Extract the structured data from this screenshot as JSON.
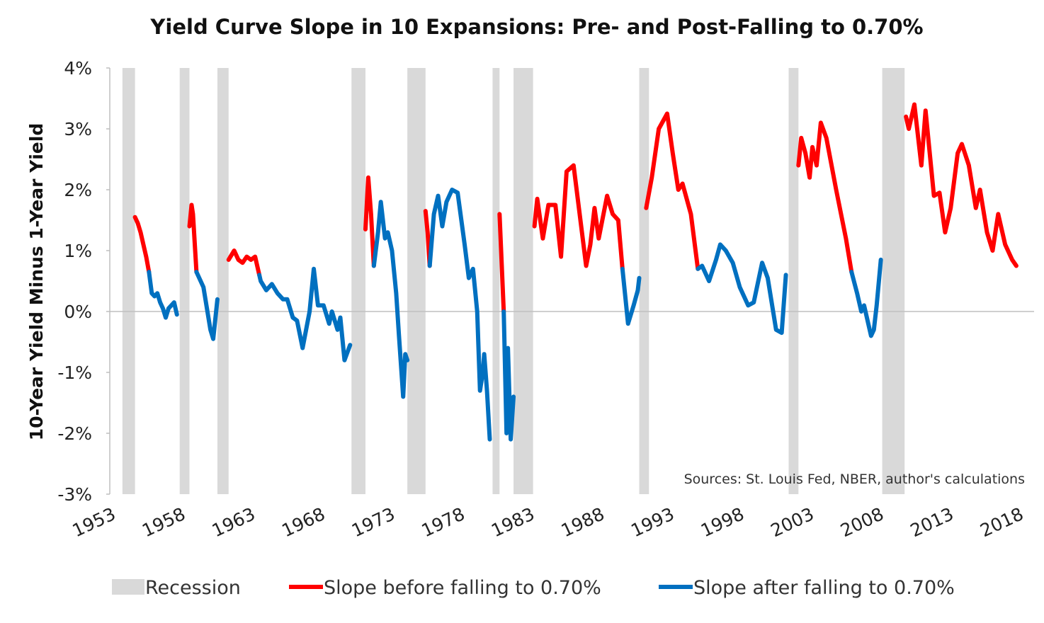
{
  "chart_data": {
    "type": "line",
    "title": "Yield Curve Slope in 10 Expansions: Pre- and Post-Falling to 0.70%",
    "ylabel": "10-Year Yield Minus 1-Year Yield",
    "xlabel": "",
    "source": "Sources: St. Louis Fed, NBER, author's calculations",
    "xlim": [
      1953,
      2018
    ],
    "ylim": [
      -3,
      4
    ],
    "x_ticks": [
      "1953",
      "1958",
      "1963",
      "1968",
      "1973",
      "1978",
      "1983",
      "1988",
      "1993",
      "1998",
      "2003",
      "2008",
      "2013",
      "2018"
    ],
    "y_ticks": [
      "-3%",
      "-2%",
      "-1%",
      "0%",
      "1%",
      "2%",
      "3%",
      "4%"
    ],
    "grid": false,
    "legend_placement": "bottom",
    "legend": [
      "Recession",
      "Slope before falling to 0.70%",
      "Slope after falling to 0.70%"
    ],
    "colors": {
      "recession": "#d9d9d9",
      "before": "#ff0000",
      "after": "#0070c0",
      "zero_line": "#bfbfbf"
    },
    "recessions": [
      [
        1953.5,
        1954.4
      ],
      [
        1957.6,
        1958.3
      ],
      [
        1960.3,
        1961.1
      ],
      [
        1969.9,
        1970.9
      ],
      [
        1973.9,
        1975.2
      ],
      [
        1980.0,
        1980.5
      ],
      [
        1981.5,
        1982.9
      ],
      [
        1990.5,
        1991.2
      ],
      [
        2001.2,
        2001.9
      ],
      [
        2007.9,
        2009.5
      ]
    ],
    "series": [
      {
        "name": "Slope before falling to 0.70%",
        "segments": [
          [
            [
              1954.4,
              1.55
            ],
            [
              1954.6,
              1.45
            ],
            [
              1954.8,
              1.3
            ],
            [
              1955.0,
              1.1
            ],
            [
              1955.2,
              0.9
            ],
            [
              1955.4,
              0.65
            ]
          ],
          [
            [
              1958.3,
              1.4
            ],
            [
              1958.45,
              1.75
            ],
            [
              1958.55,
              1.6
            ],
            [
              1958.8,
              0.65
            ]
          ],
          [
            [
              1961.1,
              0.85
            ],
            [
              1961.5,
              1.0
            ],
            [
              1961.8,
              0.85
            ],
            [
              1962.1,
              0.8
            ],
            [
              1962.4,
              0.9
            ],
            [
              1962.7,
              0.85
            ],
            [
              1963.0,
              0.9
            ],
            [
              1963.3,
              0.6
            ]
          ],
          [
            [
              1970.9,
              1.35
            ],
            [
              1971.1,
              2.2
            ],
            [
              1971.3,
              1.6
            ],
            [
              1971.5,
              0.75
            ]
          ],
          [
            [
              1975.2,
              1.65
            ],
            [
              1975.35,
              1.3
            ],
            [
              1975.5,
              0.75
            ]
          ],
          [
            [
              1980.5,
              1.6
            ],
            [
              1980.8,
              0.0
            ]
          ],
          [
            [
              1983.0,
              1.4
            ],
            [
              1983.2,
              1.85
            ],
            [
              1983.6,
              1.2
            ],
            [
              1984.0,
              1.75
            ],
            [
              1984.5,
              1.75
            ],
            [
              1984.9,
              0.9
            ],
            [
              1985.3,
              2.3
            ],
            [
              1985.8,
              2.4
            ],
            [
              1986.4,
              1.3
            ],
            [
              1986.7,
              0.75
            ],
            [
              1987.0,
              1.1
            ],
            [
              1987.3,
              1.7
            ],
            [
              1987.6,
              1.2
            ],
            [
              1988.2,
              1.9
            ],
            [
              1988.6,
              1.6
            ],
            [
              1989.0,
              1.5
            ],
            [
              1989.3,
              0.7
            ]
          ],
          [
            [
              1991.0,
              1.7
            ],
            [
              1991.4,
              2.2
            ],
            [
              1991.9,
              3.0
            ],
            [
              1992.5,
              3.25
            ],
            [
              1992.9,
              2.6
            ],
            [
              1993.3,
              2.0
            ],
            [
              1993.6,
              2.1
            ],
            [
              1994.2,
              1.6
            ],
            [
              1994.7,
              0.7
            ]
          ],
          [
            [
              2001.9,
              2.4
            ],
            [
              2002.1,
              2.85
            ],
            [
              2002.4,
              2.6
            ],
            [
              2002.7,
              2.2
            ],
            [
              2002.9,
              2.7
            ],
            [
              2003.2,
              2.4
            ],
            [
              2003.5,
              3.1
            ],
            [
              2003.9,
              2.85
            ],
            [
              2004.6,
              2.0
            ],
            [
              2005.3,
              1.2
            ],
            [
              2005.7,
              0.65
            ]
          ],
          [
            [
              2009.6,
              3.2
            ],
            [
              2009.8,
              3.0
            ],
            [
              2010.2,
              3.4
            ],
            [
              2010.7,
              2.4
            ],
            [
              2011.0,
              3.3
            ],
            [
              2011.6,
              1.9
            ],
            [
              2012.0,
              1.95
            ],
            [
              2012.4,
              1.3
            ],
            [
              2012.8,
              1.7
            ],
            [
              2013.3,
              2.6
            ],
            [
              2013.6,
              2.75
            ],
            [
              2014.1,
              2.4
            ],
            [
              2014.6,
              1.7
            ],
            [
              2014.9,
              2.0
            ],
            [
              2015.4,
              1.3
            ],
            [
              2015.8,
              1.0
            ],
            [
              2016.2,
              1.6
            ],
            [
              2016.7,
              1.1
            ],
            [
              2017.2,
              0.85
            ],
            [
              2017.5,
              0.75
            ]
          ]
        ]
      },
      {
        "name": "Slope after falling to 0.70%",
        "segments": [
          [
            [
              1955.4,
              0.65
            ],
            [
              1955.6,
              0.3
            ],
            [
              1955.8,
              0.25
            ],
            [
              1956.0,
              0.3
            ],
            [
              1956.2,
              0.15
            ],
            [
              1956.4,
              0.05
            ],
            [
              1956.6,
              -0.1
            ],
            [
              1956.8,
              0.05
            ],
            [
              1957.0,
              0.1
            ],
            [
              1957.2,
              0.15
            ],
            [
              1957.4,
              -0.05
            ]
          ],
          [
            [
              1958.8,
              0.65
            ],
            [
              1959.3,
              0.4
            ],
            [
              1959.8,
              -0.3
            ],
            [
              1960.0,
              -0.45
            ],
            [
              1960.3,
              0.2
            ]
          ],
          [
            [
              1963.3,
              0.6
            ],
            [
              1963.4,
              0.5
            ],
            [
              1963.8,
              0.35
            ],
            [
              1964.2,
              0.45
            ],
            [
              1964.6,
              0.3
            ],
            [
              1965.0,
              0.2
            ],
            [
              1965.3,
              0.2
            ],
            [
              1965.7,
              -0.1
            ],
            [
              1966.0,
              -0.15
            ],
            [
              1966.4,
              -0.6
            ],
            [
              1966.9,
              0.0
            ],
            [
              1967.2,
              0.7
            ],
            [
              1967.5,
              0.1
            ],
            [
              1967.9,
              0.1
            ],
            [
              1968.3,
              -0.2
            ],
            [
              1968.5,
              0.0
            ],
            [
              1968.9,
              -0.3
            ],
            [
              1969.1,
              -0.1
            ],
            [
              1969.4,
              -0.8
            ],
            [
              1969.8,
              -0.55
            ]
          ],
          [
            [
              1971.5,
              0.75
            ],
            [
              1971.8,
              1.3
            ],
            [
              1972.0,
              1.8
            ],
            [
              1972.3,
              1.2
            ],
            [
              1972.5,
              1.3
            ],
            [
              1972.8,
              1.0
            ],
            [
              1973.1,
              0.3
            ],
            [
              1973.3,
              -0.4
            ],
            [
              1973.6,
              -1.4
            ],
            [
              1973.75,
              -0.7
            ],
            [
              1973.9,
              -0.8
            ]
          ],
          [
            [
              1975.5,
              0.75
            ],
            [
              1975.8,
              1.6
            ],
            [
              1976.1,
              1.9
            ],
            [
              1976.4,
              1.4
            ],
            [
              1976.7,
              1.8
            ],
            [
              1977.1,
              2.0
            ],
            [
              1977.5,
              1.95
            ],
            [
              1978.0,
              1.1
            ],
            [
              1978.3,
              0.55
            ],
            [
              1978.6,
              0.7
            ],
            [
              1978.9,
              0.0
            ],
            [
              1979.1,
              -1.3
            ],
            [
              1979.3,
              -1.0
            ],
            [
              1979.4,
              -0.7
            ],
            [
              1979.6,
              -1.3
            ],
            [
              1979.8,
              -2.1
            ]
          ],
          [
            [
              1980.8,
              0.0
            ],
            [
              1981.0,
              -2.0
            ],
            [
              1981.1,
              -0.6
            ],
            [
              1981.3,
              -2.1
            ],
            [
              1981.5,
              -1.4
            ]
          ],
          [
            [
              1989.3,
              0.7
            ],
            [
              1989.7,
              -0.2
            ],
            [
              1990.1,
              0.1
            ],
            [
              1990.4,
              0.35
            ],
            [
              1990.5,
              0.55
            ]
          ],
          [
            [
              1994.7,
              0.7
            ],
            [
              1995.0,
              0.75
            ],
            [
              1995.5,
              0.5
            ],
            [
              1996.0,
              0.85
            ],
            [
              1996.3,
              1.1
            ],
            [
              1996.7,
              1.0
            ],
            [
              1997.2,
              0.8
            ],
            [
              1997.7,
              0.4
            ],
            [
              1998.3,
              0.1
            ],
            [
              1998.7,
              0.15
            ],
            [
              1999.3,
              0.8
            ],
            [
              1999.7,
              0.55
            ],
            [
              2000.3,
              -0.3
            ],
            [
              2000.7,
              -0.35
            ],
            [
              2001.0,
              0.6
            ]
          ],
          [
            [
              2005.7,
              0.65
            ],
            [
              2006.1,
              0.3
            ],
            [
              2006.4,
              0.0
            ],
            [
              2006.6,
              0.1
            ],
            [
              2007.1,
              -0.4
            ],
            [
              2007.3,
              -0.3
            ],
            [
              2007.5,
              0.1
            ],
            [
              2007.8,
              0.85
            ]
          ]
        ]
      }
    ]
  }
}
